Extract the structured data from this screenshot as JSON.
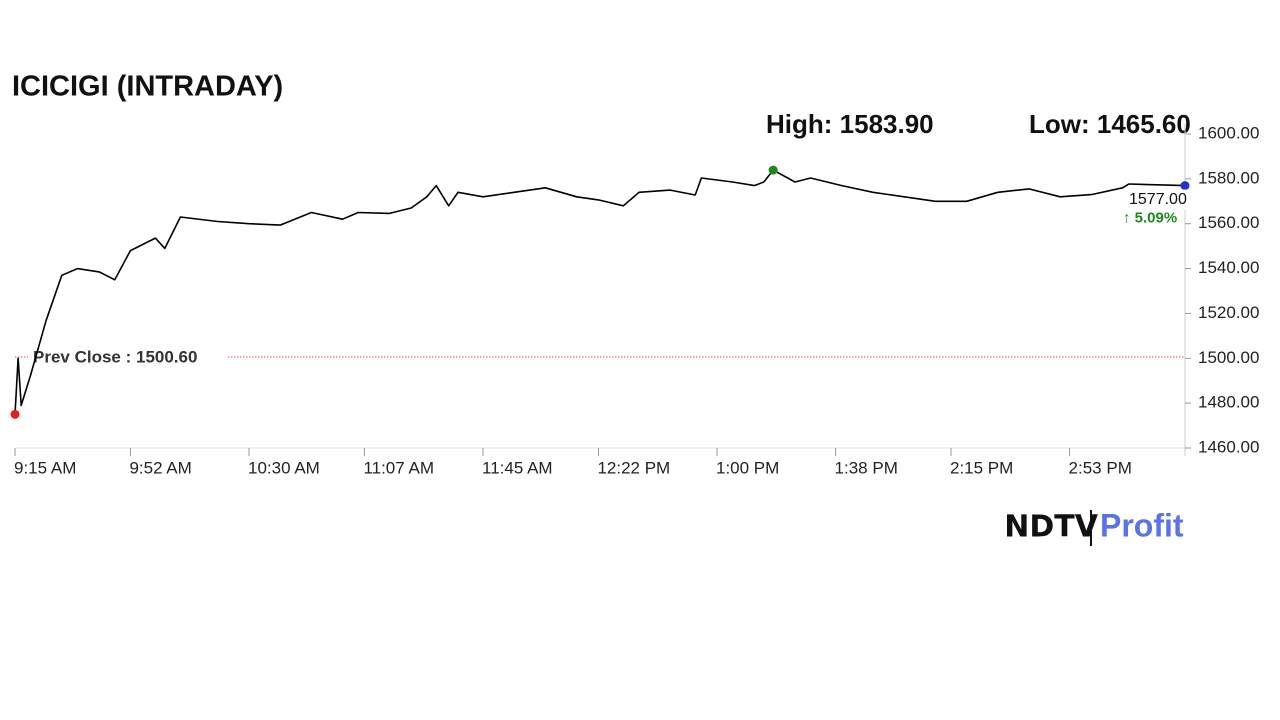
{
  "chart_data": {
    "type": "line",
    "title": "ICICIGI (INTRADAY)",
    "high": {
      "value": 1583.9,
      "label": "High: 1583.90"
    },
    "low": {
      "value": 1465.6,
      "label": "Low: 1465.60"
    },
    "prev_close": {
      "value": 1500.6,
      "label": "Prev Close : 1500.60"
    },
    "last": {
      "value": 1577,
      "label": "1577.00"
    },
    "change": {
      "value": 5.09,
      "label": "↑ 5.09%"
    },
    "color": "#000000",
    "x": [
      "9:15 AM",
      "9:16 AM",
      "9:17 AM",
      "9:20 AM",
      "9:25 AM",
      "9:30 AM",
      "9:35 AM",
      "9:42 AM",
      "9:47 AM",
      "9:52 AM",
      "10:00 AM",
      "10:03 AM",
      "10:08 AM",
      "10:20 AM",
      "10:30 AM",
      "10:40 AM",
      "10:50 AM",
      "11:00 AM",
      "11:05 AM",
      "11:15 AM",
      "11:22 AM",
      "11:27 AM",
      "11:30 AM",
      "11:34 AM",
      "11:37 AM",
      "11:45 AM",
      "11:55 AM",
      "12:05 PM",
      "12:15 PM",
      "12:22 PM",
      "12:30 PM",
      "12:35 PM",
      "12:45 PM",
      "12:53 PM",
      "12:55 PM",
      "1:05 PM",
      "1:12 PM",
      "1:15 PM",
      "1:18 PM",
      "1:25 PM",
      "1:30 PM",
      "1:40 PM",
      "1:50 PM",
      "2:00 PM",
      "2:10 PM",
      "2:20 PM",
      "2:30 PM",
      "2:40 PM",
      "2:50 PM",
      "3:00 PM",
      "3:10 PM",
      "3:12 PM",
      "3:30 PM"
    ],
    "values": [
      1475,
      1500,
      1479,
      1492.5,
      1517,
      1537,
      1540,
      1538.5,
      1535,
      1548,
      1553.6,
      1549,
      1563,
      1561,
      1560,
      1559.4,
      1565,
      1562,
      1565,
      1564.6,
      1567,
      1572,
      1577,
      1568,
      1574,
      1572,
      1574,
      1576,
      1572,
      1570.6,
      1568,
      1574,
      1575,
      1572.8,
      1580.4,
      1578.6,
      1577,
      1578.6,
      1583.9,
      1578.6,
      1580.4,
      1577,
      1574,
      1572,
      1570,
      1570,
      1574,
      1575.5,
      1572,
      1573,
      1576,
      1577.7,
      1577
    ],
    "xlim": [
      "9:15 AM",
      "3:30 PM"
    ],
    "xticks": [
      "9:15 AM",
      "9:52 AM",
      "10:30 AM",
      "11:07 AM",
      "11:45 AM",
      "12:22 PM",
      "1:00 PM",
      "1:38 PM",
      "2:15 PM",
      "2:53 PM"
    ],
    "ylim": [
      1460,
      1600
    ],
    "yticks": [
      {
        "value": 1460,
        "label": "1460.00"
      },
      {
        "value": 1480,
        "label": "1480.00"
      },
      {
        "value": 1500,
        "label": "1500.00"
      },
      {
        "value": 1520,
        "label": "1520.00"
      },
      {
        "value": 1540,
        "label": "1540.00"
      },
      {
        "value": 1560,
        "label": "1560.00"
      },
      {
        "value": 1580,
        "label": "1580.00"
      },
      {
        "value": 1600,
        "label": "1600.00"
      }
    ],
    "brand": {
      "left": "NDTV",
      "right": "Profit"
    }
  }
}
